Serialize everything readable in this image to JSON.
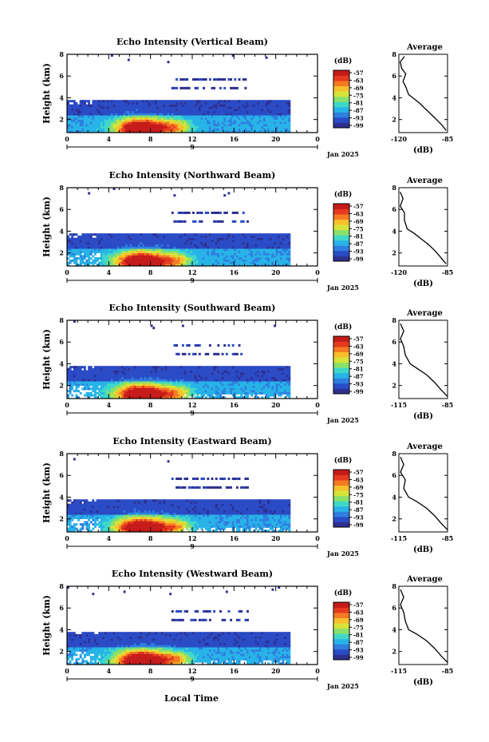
{
  "figure": {
    "time_axis_label": "Local Time",
    "colorbar_colors": [
      "#2e2f8f",
      "#2a4bc6",
      "#2f7fe0",
      "#27b3e8",
      "#3fd8c8",
      "#8ae06a",
      "#d6e43a",
      "#f7c02c",
      "#f57a22",
      "#e53a1f",
      "#c61b1b"
    ]
  },
  "chart_data": [
    {
      "type": "heatmap",
      "title": "Echo Intensity (Vertical Beam)",
      "ylabel": "Height (km)",
      "x_ticks": [
        "0",
        "4",
        "8",
        "12",
        "16",
        "20",
        "0"
      ],
      "day_label": "9",
      "date_label": "Jan 2025",
      "y_ticks": [
        "2",
        "4",
        "6",
        "8"
      ],
      "xlim": [
        0,
        24
      ],
      "ylim": [
        0.8,
        8
      ],
      "colorbar": {
        "unit": "(dB)",
        "ticks": [
          "-57",
          "-63",
          "-69",
          "-75",
          "-81",
          "-87",
          "-93",
          "-99"
        ]
      },
      "average_profile": {
        "title": "Average",
        "xlabel": "(dB)",
        "x_ticks": [
          "-120",
          "-85"
        ],
        "xlim": [
          -120,
          -85
        ],
        "y_ticks": [
          "2",
          "4",
          "6",
          "8"
        ],
        "points": [
          [
            -86,
            1.0
          ],
          [
            -89,
            1.5
          ],
          [
            -93,
            2.0
          ],
          [
            -97,
            2.5
          ],
          [
            -101,
            3.0
          ],
          [
            -105,
            3.5
          ],
          [
            -109,
            3.9
          ],
          [
            -113,
            4.3
          ],
          [
            -115,
            5.0
          ],
          [
            -117,
            5.5
          ],
          [
            -115,
            6.2
          ],
          [
            -118,
            6.7
          ],
          [
            -119,
            7.3
          ],
          [
            -116,
            7.8
          ]
        ]
      }
    },
    {
      "type": "heatmap",
      "title": "Echo Intensity (Northward Beam)",
      "ylabel": "Height (km)",
      "x_ticks": [
        "0",
        "4",
        "8",
        "12",
        "16",
        "20",
        "0"
      ],
      "day_label": "9",
      "date_label": "Jan 2025",
      "y_ticks": [
        "2",
        "4",
        "6",
        "8"
      ],
      "xlim": [
        0,
        24
      ],
      "ylim": [
        0.8,
        8
      ],
      "colorbar": {
        "unit": "(dB)",
        "ticks": [
          "-57",
          "-63",
          "-69",
          "-75",
          "-81",
          "-87",
          "-93",
          "-99"
        ]
      },
      "average_profile": {
        "title": "Average",
        "xlabel": "(dB)",
        "x_ticks": [
          "-120",
          "-85"
        ],
        "xlim": [
          -120,
          -85
        ],
        "y_ticks": [
          "2",
          "4",
          "6",
          "8"
        ],
        "points": [
          [
            -86,
            1.0
          ],
          [
            -90,
            1.6
          ],
          [
            -94,
            2.2
          ],
          [
            -99,
            2.8
          ],
          [
            -104,
            3.3
          ],
          [
            -109,
            3.8
          ],
          [
            -114,
            4.2
          ],
          [
            -116,
            5.0
          ],
          [
            -116,
            5.7
          ],
          [
            -119,
            6.3
          ],
          [
            -117,
            7.0
          ],
          [
            -119,
            7.6
          ]
        ]
      }
    },
    {
      "type": "heatmap",
      "title": "Echo Intensity (Southward Beam)",
      "ylabel": "Height (km)",
      "x_ticks": [
        "0",
        "4",
        "8",
        "12",
        "16",
        "20",
        "0"
      ],
      "day_label": "9",
      "date_label": "Jan 2025",
      "y_ticks": [
        "2",
        "4",
        "6",
        "8"
      ],
      "xlim": [
        0,
        24
      ],
      "ylim": [
        0.8,
        8
      ],
      "colorbar": {
        "unit": "(dB)",
        "ticks": [
          "-57",
          "-63",
          "-69",
          "-75",
          "-81",
          "-87",
          "-93",
          "-99"
        ]
      },
      "average_profile": {
        "title": "Average",
        "xlabel": "(dB)",
        "x_ticks": [
          "-115",
          "-85"
        ],
        "xlim": [
          -115,
          -85
        ],
        "y_ticks": [
          "2",
          "4",
          "6",
          "8"
        ],
        "points": [
          [
            -85,
            1.0
          ],
          [
            -89,
            1.6
          ],
          [
            -93,
            2.3
          ],
          [
            -98,
            3.0
          ],
          [
            -104,
            3.6
          ],
          [
            -108,
            4.0
          ],
          [
            -111,
            4.8
          ],
          [
            -112,
            5.6
          ],
          [
            -114,
            6.3
          ],
          [
            -112,
            7.0
          ],
          [
            -114,
            7.7
          ]
        ]
      }
    },
    {
      "type": "heatmap",
      "title": "Echo Intensity (Eastward Beam)",
      "ylabel": "Height (km)",
      "x_ticks": [
        "0",
        "4",
        "8",
        "12",
        "16",
        "20",
        "0"
      ],
      "day_label": "9",
      "date_label": "Jan 2025",
      "y_ticks": [
        "2",
        "4",
        "6",
        "8"
      ],
      "xlim": [
        0,
        24
      ],
      "ylim": [
        0.8,
        8
      ],
      "colorbar": {
        "unit": "(dB)",
        "ticks": [
          "-57",
          "-63",
          "-69",
          "-75",
          "-81",
          "-87",
          "-93",
          "-99"
        ]
      },
      "average_profile": {
        "title": "Average",
        "xlabel": "(dB)",
        "x_ticks": [
          "-115",
          "-85"
        ],
        "xlim": [
          -115,
          -85
        ],
        "y_ticks": [
          "2",
          "4",
          "6",
          "8"
        ],
        "points": [
          [
            -85,
            1.0
          ],
          [
            -89,
            1.6
          ],
          [
            -93,
            2.3
          ],
          [
            -98,
            3.0
          ],
          [
            -104,
            3.6
          ],
          [
            -109,
            4.0
          ],
          [
            -112,
            4.8
          ],
          [
            -111,
            5.6
          ],
          [
            -114,
            6.3
          ],
          [
            -112,
            7.0
          ],
          [
            -114,
            7.7
          ]
        ]
      }
    },
    {
      "type": "heatmap",
      "title": "Echo Intensity (Westward Beam)",
      "ylabel": "Height (km)",
      "x_ticks": [
        "0",
        "4",
        "8",
        "12",
        "16",
        "20",
        "0"
      ],
      "day_label": "9",
      "date_label": "Jan 2025",
      "y_ticks": [
        "2",
        "4",
        "6",
        "8"
      ],
      "xlim": [
        0,
        24
      ],
      "ylim": [
        0.8,
        8
      ],
      "colorbar": {
        "unit": "(dB)",
        "ticks": [
          "-57",
          "-63",
          "-69",
          "-75",
          "-81",
          "-87",
          "-93",
          "-99"
        ]
      },
      "average_profile": {
        "title": "Average",
        "xlabel": "(dB)",
        "x_ticks": [
          "-115",
          "-85"
        ],
        "xlim": [
          -115,
          -85
        ],
        "y_ticks": [
          "2",
          "4",
          "6",
          "8"
        ],
        "points": [
          [
            -85,
            1.0
          ],
          [
            -89,
            1.6
          ],
          [
            -93,
            2.3
          ],
          [
            -98,
            3.0
          ],
          [
            -104,
            3.6
          ],
          [
            -109,
            4.0
          ],
          [
            -111,
            4.8
          ],
          [
            -112,
            5.6
          ],
          [
            -114,
            6.3
          ],
          [
            -112,
            7.0
          ],
          [
            -114,
            7.7
          ]
        ]
      }
    }
  ]
}
